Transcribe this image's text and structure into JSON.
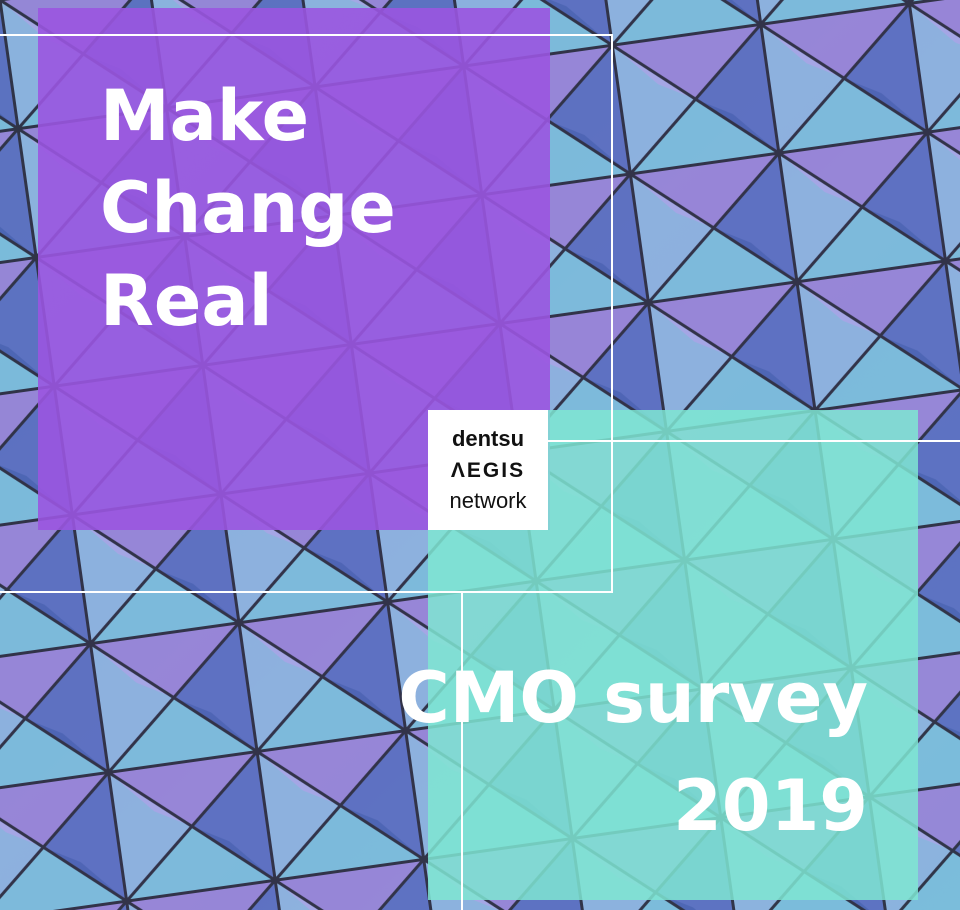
{
  "headline": {
    "lines": [
      "Make",
      "Change",
      "Real"
    ]
  },
  "logo": {
    "line1": "dentsu",
    "line2": "ΛEGIS",
    "line3": "network"
  },
  "survey": {
    "title": "CMO survey",
    "year": "2019"
  }
}
